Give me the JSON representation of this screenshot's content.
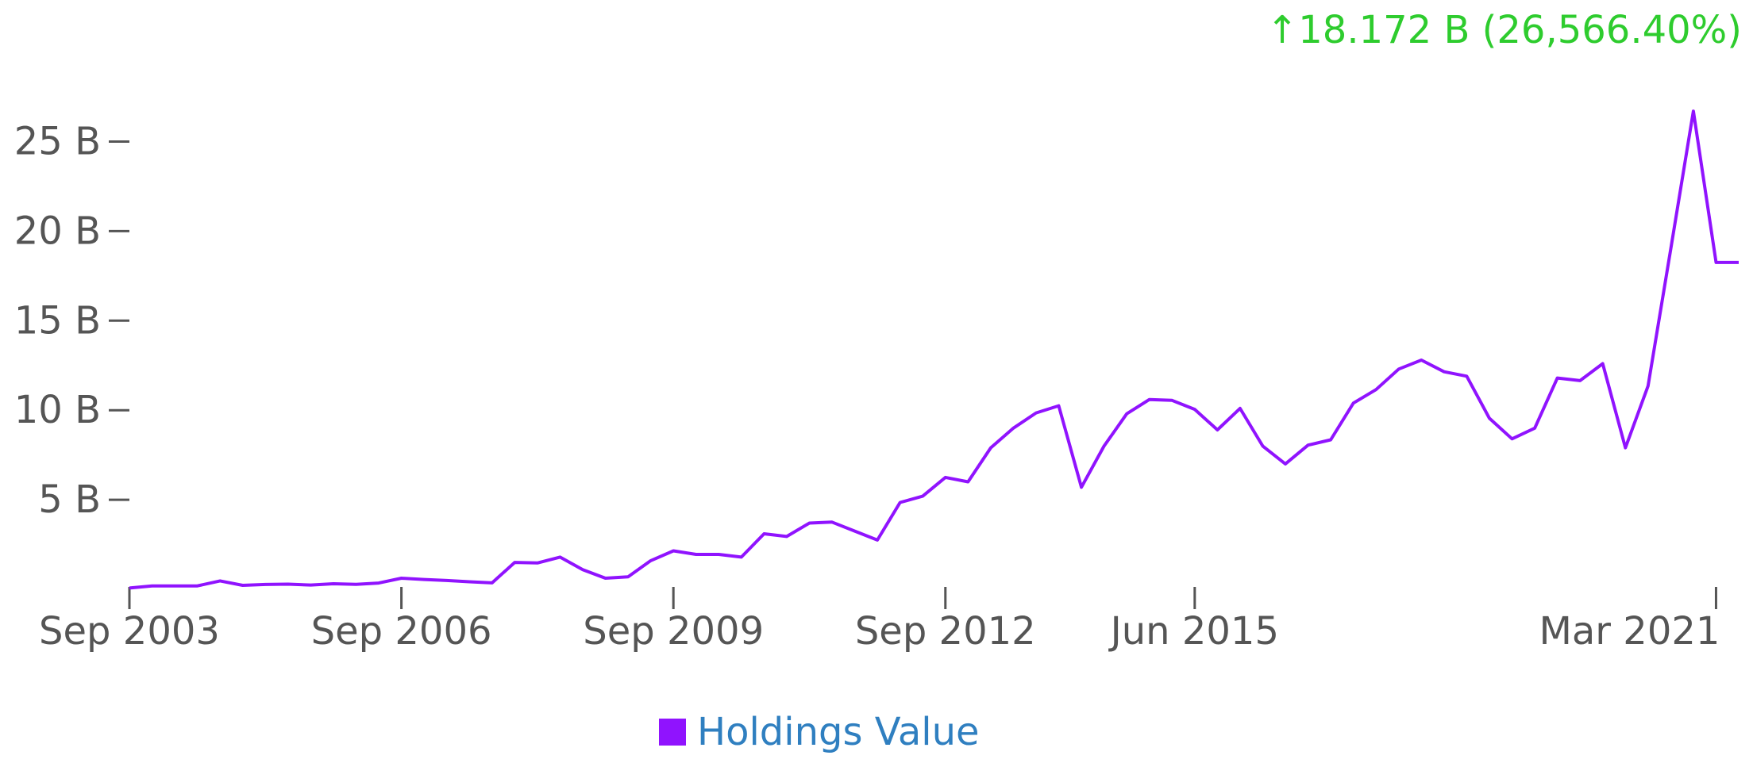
{
  "header": {
    "change_arrow": "↑",
    "change_text": "18.172 B (26,566.40%)"
  },
  "colors": {
    "series": "#9013fe",
    "change": "#2ecc2e",
    "legend_text": "#2f7fc0",
    "axis_text": "#555555",
    "axis_line": "#555555"
  },
  "legend": {
    "label": "Holdings Value",
    "position": "bottom-center"
  },
  "chart_data": {
    "type": "line",
    "title": "",
    "xlabel": "",
    "ylabel": "",
    "grid": false,
    "ylim": [
      0,
      26.5
    ],
    "x_ticks": [
      "Sep 2003",
      "Sep 2006",
      "Sep 2009",
      "Sep 2012",
      "Jun 2015",
      "Mar 2021"
    ],
    "y_ticks": [
      "5 B",
      "10 B",
      "15 B",
      "20 B",
      "25 B"
    ],
    "y_tick_values": [
      5,
      10,
      15,
      20,
      25
    ],
    "series": [
      {
        "name": "Holdings Value",
        "x": [
          "2003-09",
          "2003-12",
          "2004-03",
          "2004-06",
          "2004-09",
          "2004-12",
          "2005-03",
          "2005-06",
          "2005-09",
          "2005-12",
          "2006-03",
          "2006-06",
          "2006-09",
          "2006-12",
          "2007-03",
          "2007-06",
          "2007-09",
          "2007-12",
          "2008-03",
          "2008-06",
          "2008-09",
          "2008-12",
          "2009-03",
          "2009-06",
          "2009-09",
          "2009-12",
          "2010-03",
          "2010-06",
          "2010-09",
          "2010-12",
          "2011-03",
          "2011-06",
          "2011-09",
          "2011-12",
          "2012-03",
          "2012-06",
          "2012-09",
          "2012-12",
          "2013-03",
          "2013-06",
          "2013-09",
          "2013-12",
          "2014-03",
          "2014-06",
          "2014-09",
          "2014-12",
          "2015-03",
          "2015-06",
          "2015-09",
          "2015-12",
          "2016-03",
          "2016-06",
          "2016-09",
          "2016-12",
          "2017-03",
          "2017-06",
          "2017-09",
          "2017-12",
          "2018-03",
          "2018-06",
          "2018-09",
          "2018-12",
          "2019-03",
          "2019-06",
          "2019-09",
          "2019-12",
          "2020-03",
          "2020-06",
          "2020-09",
          "2020-12",
          "2021-03",
          "2021-06"
        ],
        "values": [
          0.07,
          0.19,
          0.19,
          0.19,
          0.47,
          0.22,
          0.27,
          0.29,
          0.24,
          0.31,
          0.28,
          0.35,
          0.62,
          0.55,
          0.49,
          0.42,
          0.36,
          1.5,
          1.47,
          1.8,
          1.1,
          0.62,
          0.7,
          1.6,
          2.15,
          1.95,
          1.95,
          1.8,
          3.1,
          2.95,
          3.7,
          3.75,
          3.25,
          2.75,
          4.85,
          5.2,
          6.25,
          6.0,
          7.9,
          9.0,
          9.85,
          10.25,
          5.7,
          8.0,
          9.8,
          10.6,
          10.55,
          10.05,
          8.9,
          10.1,
          8.0,
          7.0,
          8.05,
          8.35,
          10.4,
          11.15,
          12.3,
          12.8,
          12.15,
          11.9,
          9.55,
          8.4,
          9.0,
          11.8,
          11.65,
          12.6,
          7.9,
          11.35,
          19.0,
          26.7,
          18.25,
          18.25
        ]
      }
    ]
  }
}
